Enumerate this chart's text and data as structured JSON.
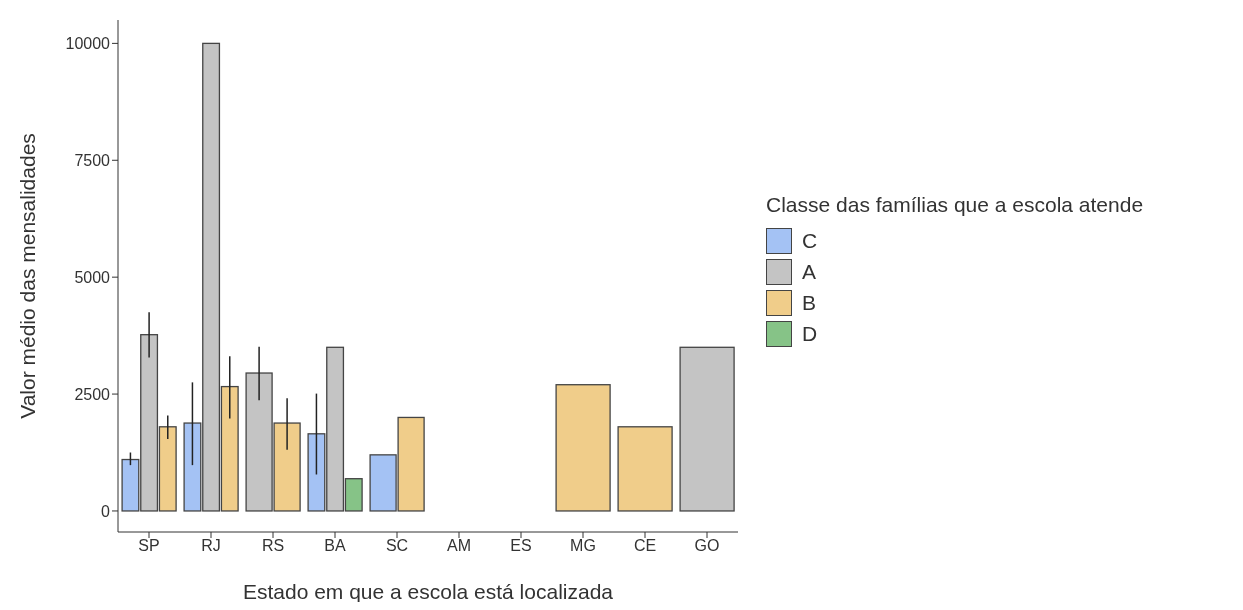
{
  "chart_data": {
    "type": "bar",
    "xlabel": "Estado em que a escola está localizada",
    "ylabel": "Valor médio das mensalidades",
    "legend_title": "Classe das famílias que a escola atende",
    "legend": "right",
    "grid": false,
    "categories": [
      "SP",
      "RJ",
      "RS",
      "BA",
      "SC",
      "AM",
      "ES",
      "MG",
      "CE",
      "GO"
    ],
    "ylim": [
      -450,
      10500
    ],
    "yticks": [
      0,
      2500,
      5000,
      7500,
      10000
    ],
    "series": [
      {
        "name": "C",
        "color": "#a4c2f4",
        "values": [
          1100,
          1880,
          null,
          1650,
          1200,
          null,
          null,
          null,
          null,
          null
        ],
        "errors": [
          [
            980,
            1250
          ],
          [
            980,
            2750
          ],
          null,
          [
            780,
            2510
          ],
          null,
          null,
          null,
          null,
          null,
          null
        ]
      },
      {
        "name": "A",
        "color": "#c4c4c4",
        "values": [
          3770,
          10000,
          2950,
          3500,
          null,
          null,
          null,
          null,
          null,
          3500
        ],
        "errors": [
          [
            3280,
            4250
          ],
          null,
          [
            2370,
            3510
          ],
          null,
          null,
          null,
          null,
          null,
          null,
          null
        ]
      },
      {
        "name": "B",
        "color": "#f0cd8a",
        "values": [
          1800,
          2660,
          1880,
          null,
          2000,
          null,
          null,
          2700,
          1800,
          null
        ],
        "errors": [
          [
            1540,
            2040
          ],
          [
            1980,
            3310
          ],
          [
            1310,
            2410
          ],
          null,
          null,
          null,
          null,
          null,
          null,
          null
        ]
      },
      {
        "name": "D",
        "color": "#86c387",
        "values": [
          null,
          null,
          null,
          690,
          null,
          null,
          null,
          null,
          null,
          null
        ]
      }
    ]
  }
}
